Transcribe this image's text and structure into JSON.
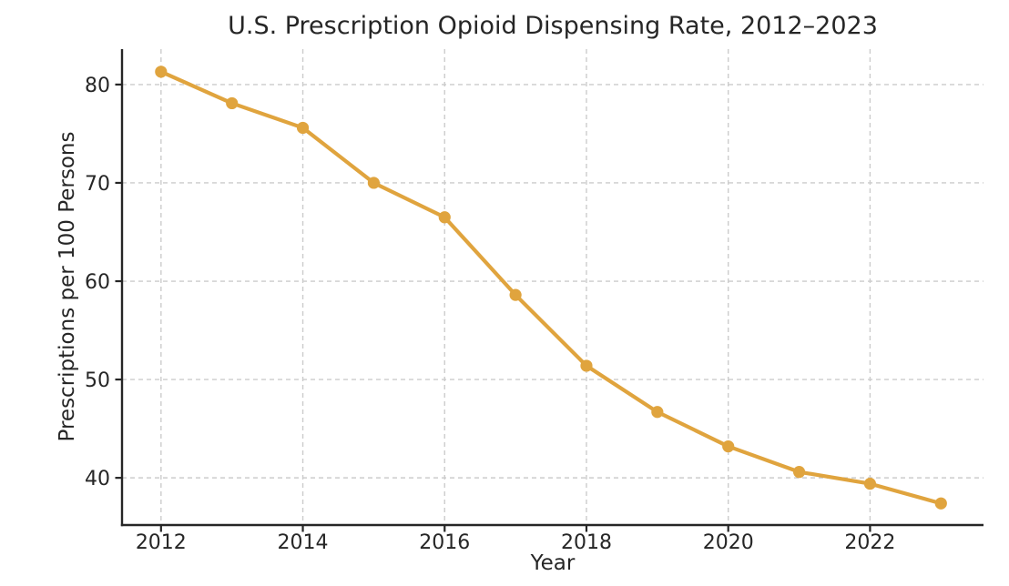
{
  "chart_data": {
    "type": "line",
    "title": "U.S. Prescription Opioid Dispensing Rate, 2012–2023",
    "xlabel": "Year",
    "ylabel": "Prescriptions per 100 Persons",
    "x": [
      2012,
      2013,
      2014,
      2015,
      2016,
      2017,
      2018,
      2019,
      2020,
      2021,
      2022,
      2023
    ],
    "values": [
      81.3,
      78.1,
      75.6,
      70.0,
      66.5,
      58.6,
      51.4,
      46.7,
      43.2,
      40.6,
      39.4,
      37.4
    ],
    "xticks": [
      2012,
      2014,
      2016,
      2018,
      2020,
      2022
    ],
    "yticks": [
      40,
      50,
      60,
      70,
      80
    ],
    "xlim": [
      2011.45,
      2023.6
    ],
    "ylim": [
      35.2,
      83.6
    ],
    "grid": true,
    "grid_style": "dashed",
    "legend": "none",
    "marker": "circle",
    "line_color": "#E0A43E",
    "grid_color": "#cccccc",
    "axis_color": "#262626",
    "text_color": "#262626",
    "background_color": "#ffffff"
  }
}
